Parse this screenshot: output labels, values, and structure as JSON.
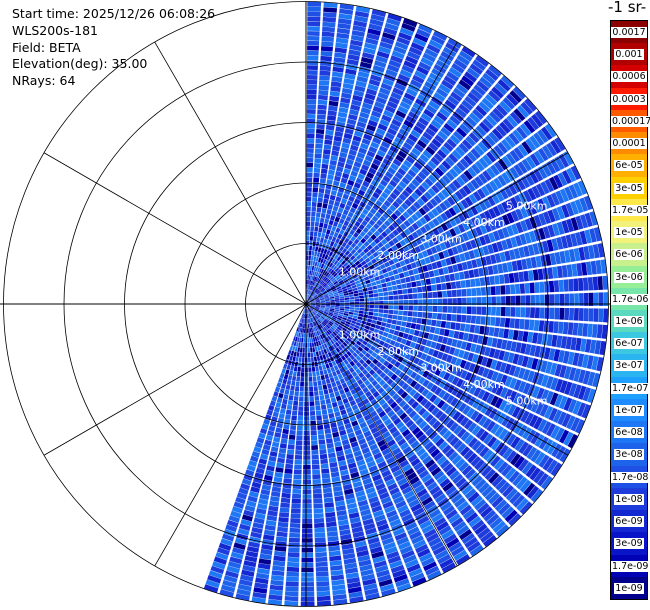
{
  "header": {
    "start_time": "Start time: 2025/12/26 06:08:26",
    "instrument": "WLS200s-181",
    "field": "Field: BETA",
    "elevation": "Elevation(deg): 35.00",
    "nrays": "NRays: 64"
  },
  "colorbar": {
    "units_label": "-1 sr-",
    "labels": [
      "0.0017",
      "0.001",
      "0.0006",
      "0.0003",
      "0.00017",
      "0.0001",
      "6e-05",
      "3e-05",
      "1.7e-05",
      "1e-05",
      "6e-06",
      "3e-06",
      "1.7e-06",
      "1e-06",
      "6e-07",
      "3e-07",
      "1.7e-07",
      "1e-07",
      "6e-08",
      "3e-08",
      "1.7e-08",
      "1e-08",
      "6e-09",
      "3e-09",
      "1.7e-09",
      "1e-09"
    ],
    "colors": [
      "#8b0000",
      "#b00000",
      "#d40000",
      "#ff1a00",
      "#ff5a00",
      "#ff8c00",
      "#ffb000",
      "#ffd000",
      "#ffe84a",
      "#f2f27a",
      "#c8f08c",
      "#96ee96",
      "#78e6a8",
      "#5ad8c0",
      "#3cc8e0",
      "#2ab4f0",
      "#1ea0ff",
      "#1e8cff",
      "#1e78f5",
      "#1e64eb",
      "#1e50e6",
      "#1e3cdc",
      "#1428d2",
      "#0a14c8",
      "#0000b4",
      "#00008c"
    ]
  },
  "chart_data": {
    "type": "polar_ppi",
    "field": "BETA",
    "elevation_deg": 35.0,
    "nrays": 64,
    "sector_deg": [
      0,
      200
    ],
    "max_range_km": 5.0,
    "range_rings_km": [
      1,
      2,
      3,
      4,
      5
    ],
    "ring_labels": [
      "1.00km",
      "2.00km",
      "3.00km",
      "4.00km",
      "5.00km"
    ],
    "grid": true,
    "value_range": [
      1e-09,
      0.0017
    ],
    "typical_value": 2e-08
  }
}
